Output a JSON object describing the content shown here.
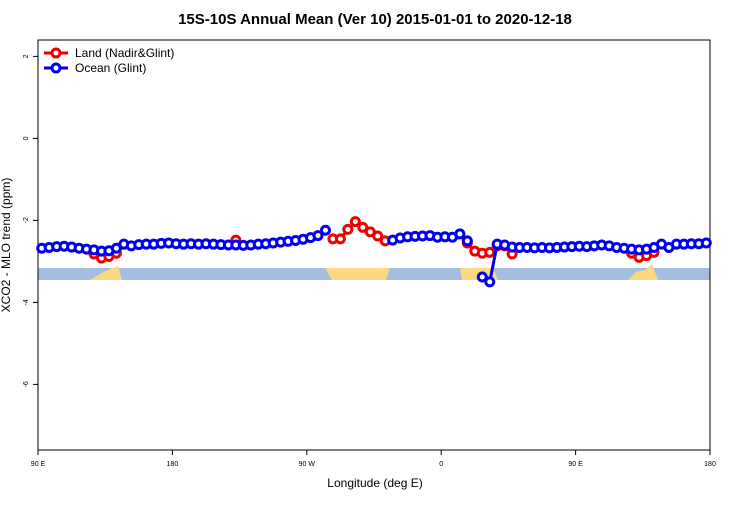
{
  "chart_data": {
    "type": "line",
    "title": "15S-10S Annual Mean (Ver 10)   2015-01-01 to 2020-12-18",
    "x_label": "Longitude (deg E)",
    "y_label": "XCO2 - MLO trend (ppm)",
    "xlim": [
      90,
      540
    ],
    "ylim": [
      -7.6,
      2.4
    ],
    "xticks": [
      {
        "value": 90,
        "label": "90 E"
      },
      180,
      {
        "value": 270,
        "label": "90 W"
      },
      {
        "value": 360,
        "label": "0"
      },
      {
        "value": 450,
        "label": "90 E"
      },
      {
        "value": 540,
        "label": "180"
      }
    ],
    "yticks": [
      -6,
      -4,
      -2,
      0,
      2
    ],
    "legend": "top-left",
    "x": [
      92.5,
      97.5,
      102.5,
      107.5,
      112.5,
      117.5,
      122.5,
      127.5,
      132.5,
      137.5,
      142.5,
      147.5,
      152.5,
      157.5,
      162.5,
      167.5,
      172.5,
      177.5,
      182.5,
      187.5,
      192.5,
      197.5,
      202.5,
      207.5,
      212.5,
      217.5,
      222.5,
      227.5,
      232.5,
      237.5,
      242.5,
      247.5,
      252.5,
      257.5,
      262.5,
      267.5,
      272.5,
      277.5,
      282.5,
      287.5,
      292.5,
      297.5,
      302.5,
      307.5,
      312.5,
      317.5,
      322.5,
      327.5,
      332.5,
      337.5,
      342.5,
      347.5,
      352.5,
      357.5,
      362.5,
      367.5,
      372.5,
      377.5,
      382.5,
      387.5,
      392.5,
      397.5,
      402.5,
      407.5,
      412.5,
      417.5,
      422.5,
      427.5,
      432.5,
      437.5,
      442.5,
      447.5,
      452.5,
      457.5,
      462.5,
      467.5,
      472.5,
      477.5,
      482.5,
      487.5,
      492.5,
      497.5,
      502.5,
      507.5,
      512.5,
      517.5,
      522.5,
      527.5,
      532.5,
      537.5
    ],
    "series": [
      {
        "name": "Land (Nadir&Glint)",
        "color": "#ee0000",
        "values": [
          null,
          null,
          null,
          null,
          null,
          null,
          null,
          -2.82,
          -2.92,
          -2.88,
          -2.8,
          null,
          null,
          null,
          null,
          null,
          null,
          null,
          null,
          null,
          null,
          null,
          null,
          null,
          null,
          null,
          -2.48,
          null,
          null,
          null,
          null,
          null,
          null,
          null,
          null,
          null,
          null,
          null,
          null,
          -2.45,
          -2.45,
          -2.22,
          -2.03,
          -2.17,
          -2.28,
          -2.38,
          -2.5,
          null,
          null,
          null,
          null,
          null,
          null,
          null,
          null,
          null,
          null,
          -2.55,
          -2.75,
          -2.8,
          -2.78,
          -2.62,
          -2.62,
          -2.82,
          null,
          null,
          null,
          null,
          null,
          null,
          null,
          null,
          null,
          null,
          null,
          null,
          null,
          null,
          null,
          -2.8,
          -2.9,
          -2.86,
          -2.78,
          null,
          null,
          null,
          null,
          null,
          null,
          null
        ]
      },
      {
        "name": "Ocean (Glint)",
        "color": "#0000ee",
        "values": [
          -2.68,
          -2.66,
          -2.64,
          -2.63,
          -2.65,
          -2.68,
          -2.7,
          -2.72,
          -2.75,
          -2.74,
          -2.68,
          -2.58,
          -2.62,
          -2.59,
          -2.58,
          -2.58,
          -2.56,
          -2.55,
          -2.57,
          -2.58,
          -2.57,
          -2.58,
          -2.57,
          -2.58,
          -2.59,
          -2.6,
          -2.6,
          -2.61,
          -2.6,
          -2.58,
          -2.57,
          -2.55,
          -2.53,
          -2.51,
          -2.49,
          -2.46,
          -2.42,
          -2.37,
          -2.24,
          null,
          null,
          null,
          null,
          null,
          null,
          null,
          null,
          -2.48,
          -2.43,
          -2.4,
          -2.39,
          -2.38,
          -2.37,
          -2.41,
          -2.4,
          -2.41,
          -2.33,
          -2.5,
          null,
          -3.38,
          -3.5,
          -2.58,
          -2.6,
          -2.65,
          -2.66,
          -2.66,
          -2.67,
          -2.66,
          -2.67,
          -2.66,
          -2.65,
          -2.64,
          -2.63,
          -2.64,
          -2.62,
          -2.6,
          -2.62,
          -2.66,
          -2.68,
          -2.7,
          -2.72,
          -2.7,
          -2.66,
          -2.58,
          -2.66,
          -2.58,
          -2.58,
          -2.57,
          -2.57,
          -2.55
        ]
      }
    ]
  }
}
